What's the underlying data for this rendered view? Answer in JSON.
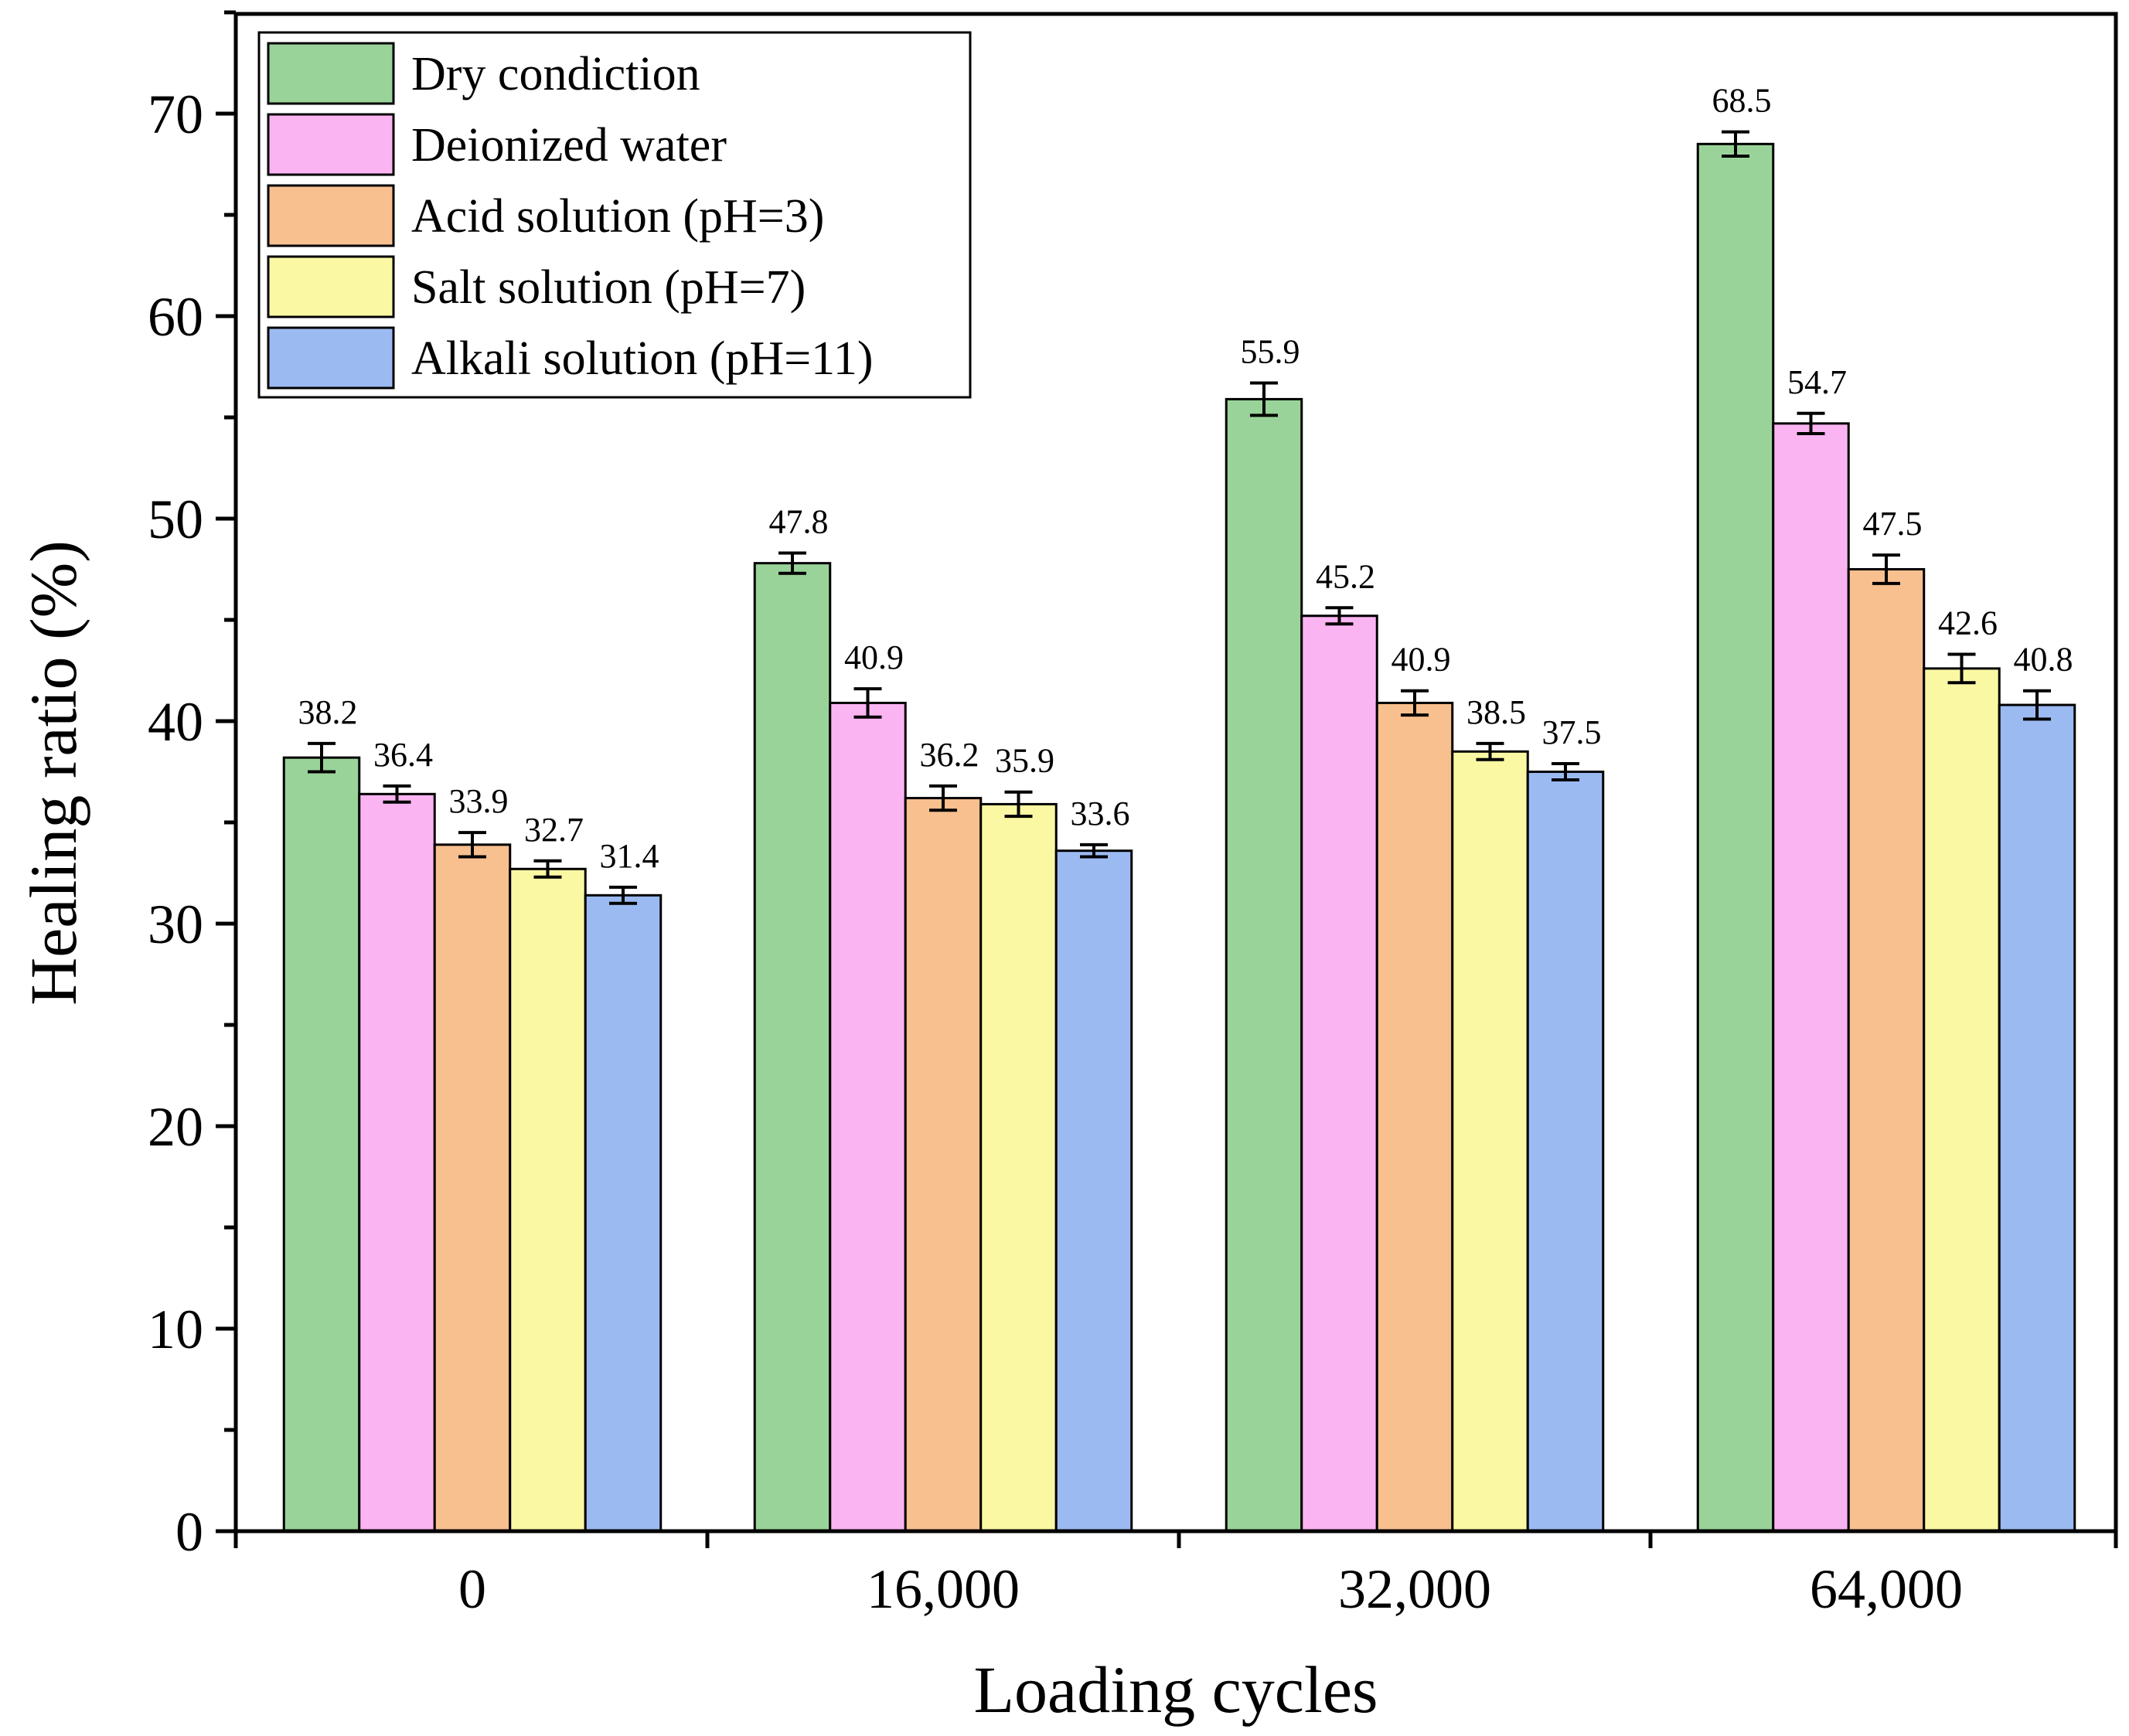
{
  "chart_data": {
    "type": "bar",
    "title": "",
    "xlabel": "Loading cycles",
    "ylabel": "Healing ratio (%)",
    "ylim": [
      0,
      75
    ],
    "yticks": [
      0,
      10,
      20,
      30,
      40,
      50,
      60,
      70
    ],
    "categories": [
      "0",
      "16,000",
      "32,000",
      "64,000"
    ],
    "legend_position": "top-left",
    "series": [
      {
        "name": "Dry condiction",
        "color": "#9ad39a",
        "values": [
          38.2,
          47.8,
          55.9,
          68.5
        ],
        "labels": [
          "38.2",
          "47.8",
          "55.9",
          "68.5"
        ],
        "errors": [
          0.7,
          0.5,
          0.8,
          0.6
        ]
      },
      {
        "name": "Deionized water",
        "color": "#fbb4f2",
        "values": [
          36.4,
          40.9,
          45.2,
          54.7
        ],
        "labels": [
          "36.4",
          "40.9",
          "45.2",
          "54.7"
        ],
        "errors": [
          0.4,
          0.7,
          0.4,
          0.5
        ]
      },
      {
        "name": "Acid solution (pH=3)",
        "color": "#f8c08f",
        "values": [
          33.9,
          36.2,
          40.9,
          47.5
        ],
        "labels": [
          "33.9",
          "36.2",
          "40.9",
          "47.5"
        ],
        "errors": [
          0.6,
          0.6,
          0.6,
          0.7
        ]
      },
      {
        "name": "Salt solution (pH=7)",
        "color": "#fbf8a4",
        "values": [
          32.7,
          35.9,
          38.5,
          42.6
        ],
        "labels": [
          "32.7",
          "35.9",
          "38.5",
          "42.6"
        ],
        "errors": [
          0.4,
          0.6,
          0.4,
          0.7
        ]
      },
      {
        "name": "Alkali solution (pH=11)",
        "color": "#9cbaf2",
        "values": [
          31.4,
          33.6,
          37.5,
          40.8
        ],
        "labels": [
          "31.4",
          "33.6",
          "37.5",
          "40.8"
        ],
        "errors": [
          0.4,
          0.3,
          0.4,
          0.7
        ]
      }
    ]
  }
}
